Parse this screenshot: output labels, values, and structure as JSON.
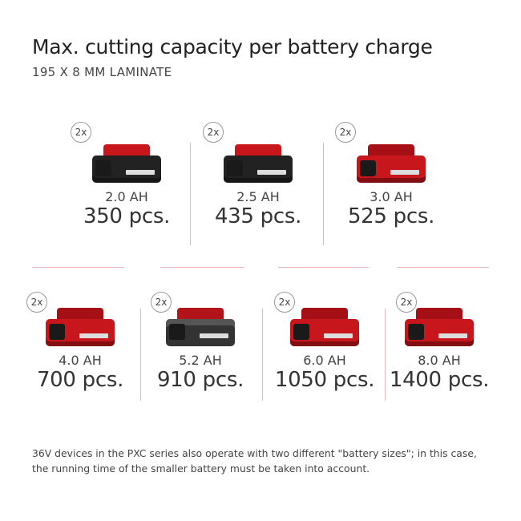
{
  "title": "Max. cutting capacity per battery charge",
  "subtitle": "195 X 8 MM LAMINATE",
  "batteries": [
    {
      "qty": "2x",
      "capacity": "2.0 AH",
      "pieces": "350 pcs.",
      "style": "dark"
    },
    {
      "qty": "2x",
      "capacity": "2.5 AH",
      "pieces": "435 pcs.",
      "style": "dark"
    },
    {
      "qty": "2x",
      "capacity": "3.0 AH",
      "pieces": "525 pcs.",
      "style": "red"
    },
    {
      "qty": "2x",
      "capacity": "4.0 AH",
      "pieces": "700 pcs.",
      "style": "red"
    },
    {
      "qty": "2x",
      "capacity": "5.2 AH",
      "pieces": "910 pcs.",
      "style": "grey"
    },
    {
      "qty": "2x",
      "capacity": "6.0 AH",
      "pieces": "1050 pcs.",
      "style": "red"
    },
    {
      "qty": "2x",
      "capacity": "8.0 AH",
      "pieces": "1400 pcs.",
      "style": "red"
    }
  ],
  "note": "36V devices in the PXC series also operate with two different \"battery sizes\"; in this case, the running time of the smaller battery must be taken into account.",
  "colors": {
    "accent": "#c8161d",
    "divider": "#e3b8b8"
  }
}
